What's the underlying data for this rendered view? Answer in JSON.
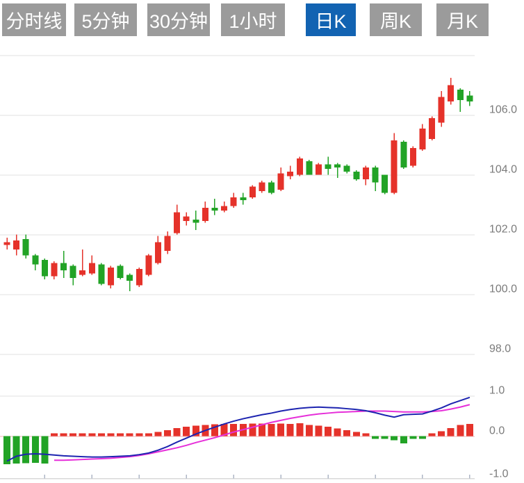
{
  "toolbar": {
    "buttons": [
      {
        "id": "tab-timeline",
        "label": "分时线",
        "active": false
      },
      {
        "id": "tab-5min",
        "label": "5分钟",
        "active": false
      },
      {
        "id": "tab-30min",
        "label": "30分钟",
        "active": false
      },
      {
        "id": "tab-1hour",
        "label": "1小时",
        "active": false
      },
      {
        "id": "tab-daily-k",
        "label": "日K",
        "active": true
      },
      {
        "id": "tab-weekly-k",
        "label": "周K",
        "active": false
      },
      {
        "id": "tab-monthly-k",
        "label": "月K",
        "active": false
      }
    ]
  },
  "colors": {
    "up": "#e5322a",
    "down": "#22a326",
    "dif_line": "#1d24b0",
    "dea_line": "#e62fd9",
    "zero_line": "#f0b2b2",
    "grid": "#e0e0e0",
    "axis_label": "#7b7b7b",
    "axis_line": "#d8d8d8",
    "axis_tick": "#aeb6c6",
    "button_bg": "#9b9b9b",
    "button_active_bg": "#1263b2",
    "button_text": "#ffffff",
    "background": "#ffffff"
  },
  "chart_data": {
    "type": "candlestick+macd",
    "title": "",
    "candle_format": "[open, high, low, close]",
    "up_color_convention": "red-up-green-down",
    "price_axis": {
      "side": "right",
      "tick_labels": [
        "106.0",
        "104.0",
        "102.0",
        "100.0",
        "98.0"
      ],
      "tick_values": [
        106,
        104,
        102,
        100,
        98
      ],
      "gridline_values": [
        108,
        106,
        104,
        102,
        100,
        98
      ],
      "range": [
        98,
        108
      ]
    },
    "x_axis": {
      "labels": [],
      "tick_count": 10,
      "tick_every_n_candles": 5
    },
    "candles": [
      [
        101.65,
        101.9,
        101.5,
        101.75
      ],
      [
        101.5,
        102.0,
        101.3,
        101.8
      ],
      [
        101.85,
        102.0,
        101.2,
        101.3
      ],
      [
        101.3,
        101.35,
        100.8,
        101.0
      ],
      [
        101.15,
        101.2,
        100.5,
        100.6
      ],
      [
        100.6,
        101.1,
        100.5,
        101.05
      ],
      [
        101.05,
        101.45,
        100.55,
        100.8
      ],
      [
        100.95,
        101.0,
        100.3,
        100.55
      ],
      [
        100.65,
        101.5,
        100.6,
        100.8
      ],
      [
        100.7,
        101.3,
        100.65,
        101.05
      ],
      [
        101.0,
        101.05,
        100.3,
        100.35
      ],
      [
        100.3,
        100.95,
        100.2,
        100.9
      ],
      [
        100.95,
        101.0,
        100.5,
        100.55
      ],
      [
        100.65,
        100.7,
        100.1,
        100.45
      ],
      [
        100.3,
        100.9,
        100.25,
        100.85
      ],
      [
        100.65,
        101.35,
        100.6,
        101.3
      ],
      [
        101.05,
        101.95,
        101.0,
        101.75
      ],
      [
        101.45,
        102.1,
        101.35,
        101.95
      ],
      [
        102.05,
        103.0,
        102.0,
        102.75
      ],
      [
        102.45,
        102.75,
        102.3,
        102.6
      ],
      [
        102.5,
        102.8,
        102.15,
        102.4
      ],
      [
        102.45,
        103.1,
        102.4,
        102.9
      ],
      [
        102.9,
        103.2,
        102.65,
        102.8
      ],
      [
        102.8,
        103.1,
        102.75,
        102.95
      ],
      [
        102.95,
        103.4,
        102.9,
        103.25
      ],
      [
        103.25,
        103.4,
        103.0,
        103.15
      ],
      [
        103.25,
        103.65,
        103.2,
        103.6
      ],
      [
        103.45,
        103.8,
        103.4,
        103.75
      ],
      [
        103.75,
        103.8,
        103.35,
        103.4
      ],
      [
        103.5,
        104.25,
        103.45,
        104.05
      ],
      [
        103.95,
        104.3,
        103.85,
        104.1
      ],
      [
        104.0,
        104.6,
        103.95,
        104.55
      ],
      [
        104.45,
        104.5,
        104.0,
        104.0
      ],
      [
        104.0,
        104.4,
        104.0,
        104.35
      ],
      [
        104.35,
        104.6,
        104.0,
        104.2
      ],
      [
        104.35,
        104.4,
        103.9,
        104.25
      ],
      [
        104.3,
        104.35,
        104.05,
        104.1
      ],
      [
        104.1,
        104.15,
        103.8,
        103.85
      ],
      [
        103.85,
        104.3,
        103.65,
        104.25
      ],
      [
        104.25,
        104.3,
        103.45,
        103.75
      ],
      [
        104.0,
        104.0,
        103.35,
        103.4
      ],
      [
        103.4,
        105.4,
        103.35,
        105.15
      ],
      [
        105.1,
        105.15,
        104.2,
        104.25
      ],
      [
        104.3,
        104.95,
        104.25,
        104.9
      ],
      [
        104.85,
        105.7,
        104.8,
        105.55
      ],
      [
        105.2,
        105.95,
        105.15,
        105.9
      ],
      [
        105.75,
        106.8,
        105.6,
        106.6
      ],
      [
        106.45,
        107.25,
        106.35,
        107.0
      ],
      [
        106.85,
        106.9,
        106.1,
        106.5
      ],
      [
        106.65,
        106.8,
        106.3,
        106.45
      ]
    ],
    "macd_panel": {
      "axis_labels": [
        "1.0",
        "0.0",
        "-1.0"
      ],
      "axis_values": [
        1,
        0,
        -1
      ],
      "range": [
        -1,
        1
      ],
      "histogram": [
        -0.7,
        -0.68,
        -0.67,
        -0.66,
        -0.68,
        0.04,
        0.05,
        0.05,
        0.05,
        0.05,
        0.05,
        0.05,
        0.05,
        0.05,
        0.05,
        0.06,
        0.1,
        0.15,
        0.2,
        0.23,
        0.26,
        0.28,
        0.29,
        0.3,
        0.3,
        0.3,
        0.31,
        0.31,
        0.3,
        0.31,
        0.3,
        0.32,
        0.28,
        0.26,
        0.23,
        0.19,
        0.15,
        0.1,
        0.06,
        -0.04,
        -0.06,
        -0.1,
        -0.18,
        -0.07,
        -0.04,
        0.06,
        0.12,
        0.2,
        0.28,
        0.3
      ],
      "dif": [
        -0.62,
        -0.5,
        -0.45,
        -0.44,
        -0.45,
        -0.47,
        -0.49,
        -0.5,
        -0.51,
        -0.52,
        -0.52,
        -0.51,
        -0.5,
        -0.49,
        -0.46,
        -0.42,
        -0.35,
        -0.26,
        -0.15,
        -0.05,
        0.05,
        0.14,
        0.22,
        0.3,
        0.37,
        0.43,
        0.48,
        0.53,
        0.57,
        0.62,
        0.66,
        0.69,
        0.71,
        0.72,
        0.71,
        0.7,
        0.68,
        0.66,
        0.63,
        0.58,
        0.52,
        0.47,
        0.53,
        0.54,
        0.55,
        0.62,
        0.7,
        0.8,
        0.88,
        0.96
      ],
      "dea": [
        null,
        null,
        null,
        null,
        null,
        -0.6,
        -0.6,
        -0.59,
        -0.58,
        -0.57,
        -0.56,
        -0.55,
        -0.53,
        -0.51,
        -0.48,
        -0.44,
        -0.39,
        -0.34,
        -0.29,
        -0.23,
        -0.16,
        -0.1,
        -0.04,
        0.03,
        0.1,
        0.16,
        0.22,
        0.28,
        0.34,
        0.39,
        0.44,
        0.48,
        0.52,
        0.55,
        0.57,
        0.59,
        0.6,
        0.61,
        0.62,
        0.62,
        0.62,
        0.61,
        0.6,
        0.6,
        0.6,
        0.61,
        0.63,
        0.67,
        0.72,
        0.78
      ]
    }
  }
}
